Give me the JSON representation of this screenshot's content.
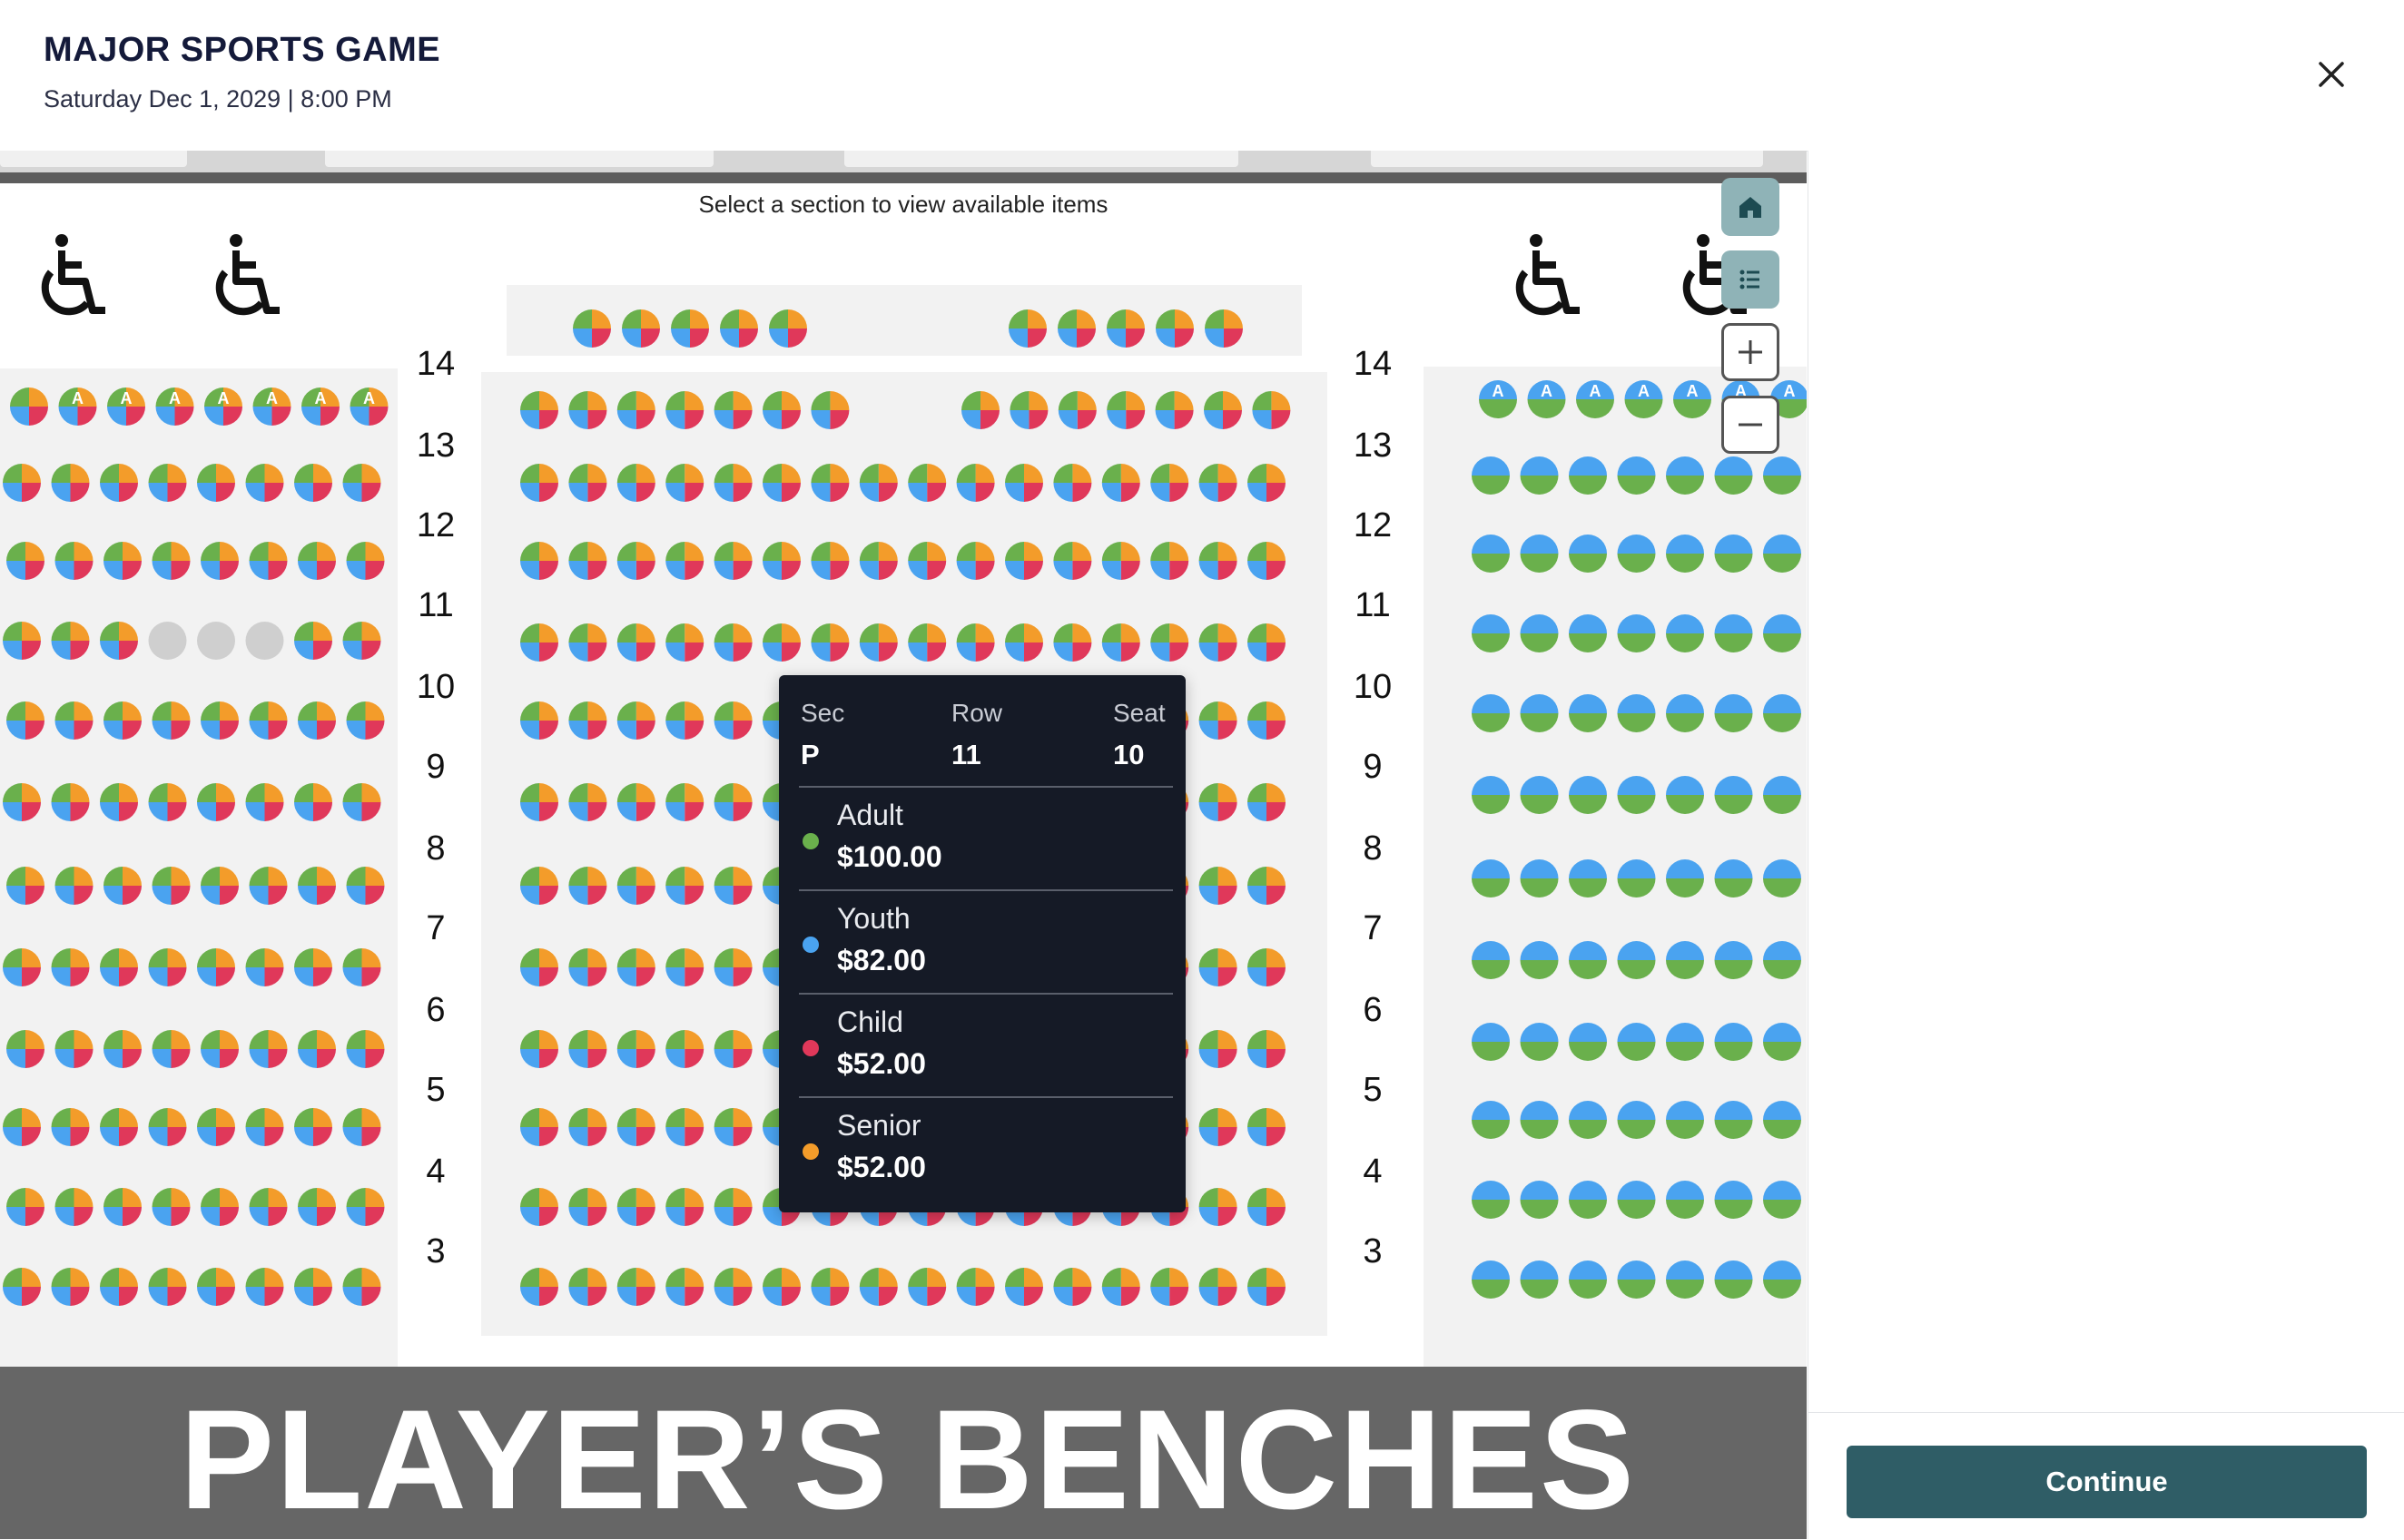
{
  "header": {
    "title": "MAJOR SPORTS GAME",
    "date": "Saturday Dec 1, 2029 | 8:00 PM",
    "close_icon": "close-icon"
  },
  "map": {
    "hint": "Select a section to view available items",
    "banner": "PLAYER’S BENCHES",
    "left_row_labels": [
      "14",
      "13",
      "12",
      "11",
      "10",
      "9",
      "8",
      "7",
      "6",
      "5",
      "4",
      "3"
    ],
    "right_row_labels": [
      "14",
      "13",
      "12",
      "11",
      "10",
      "9",
      "8",
      "7",
      "6",
      "5",
      "4",
      "3"
    ],
    "accessible_seat_marker": "A",
    "controls": [
      {
        "name": "home-icon",
        "label": "Home"
      },
      {
        "name": "list-icon",
        "label": "List"
      },
      {
        "name": "zoom-in-icon",
        "label": "Zoom in"
      },
      {
        "name": "zoom-out-icon",
        "label": "Zoom out"
      }
    ],
    "colors": {
      "adult": "#6ab04c",
      "youth": "#4aa3f0",
      "child": "#e0385a",
      "senior": "#f39c2a",
      "unavailable": "#cfcfcf",
      "section_bg": "#f2f2f2",
      "banner_bg": "#666666"
    }
  },
  "tooltip": {
    "sec_label": "Sec",
    "sec_value": "P",
    "row_label": "Row",
    "row_value": "11",
    "seat_label": "Seat",
    "seat_value": "10",
    "prices": [
      {
        "name": "Adult",
        "amount": "$100.00",
        "color": "#6ab04c"
      },
      {
        "name": "Youth",
        "amount": "$82.00",
        "color": "#4aa3f0"
      },
      {
        "name": "Child",
        "amount": "$52.00",
        "color": "#e0385a"
      },
      {
        "name": "Senior",
        "amount": "$52.00",
        "color": "#f39c2a"
      }
    ]
  },
  "panel": {
    "continue_label": "Continue"
  }
}
